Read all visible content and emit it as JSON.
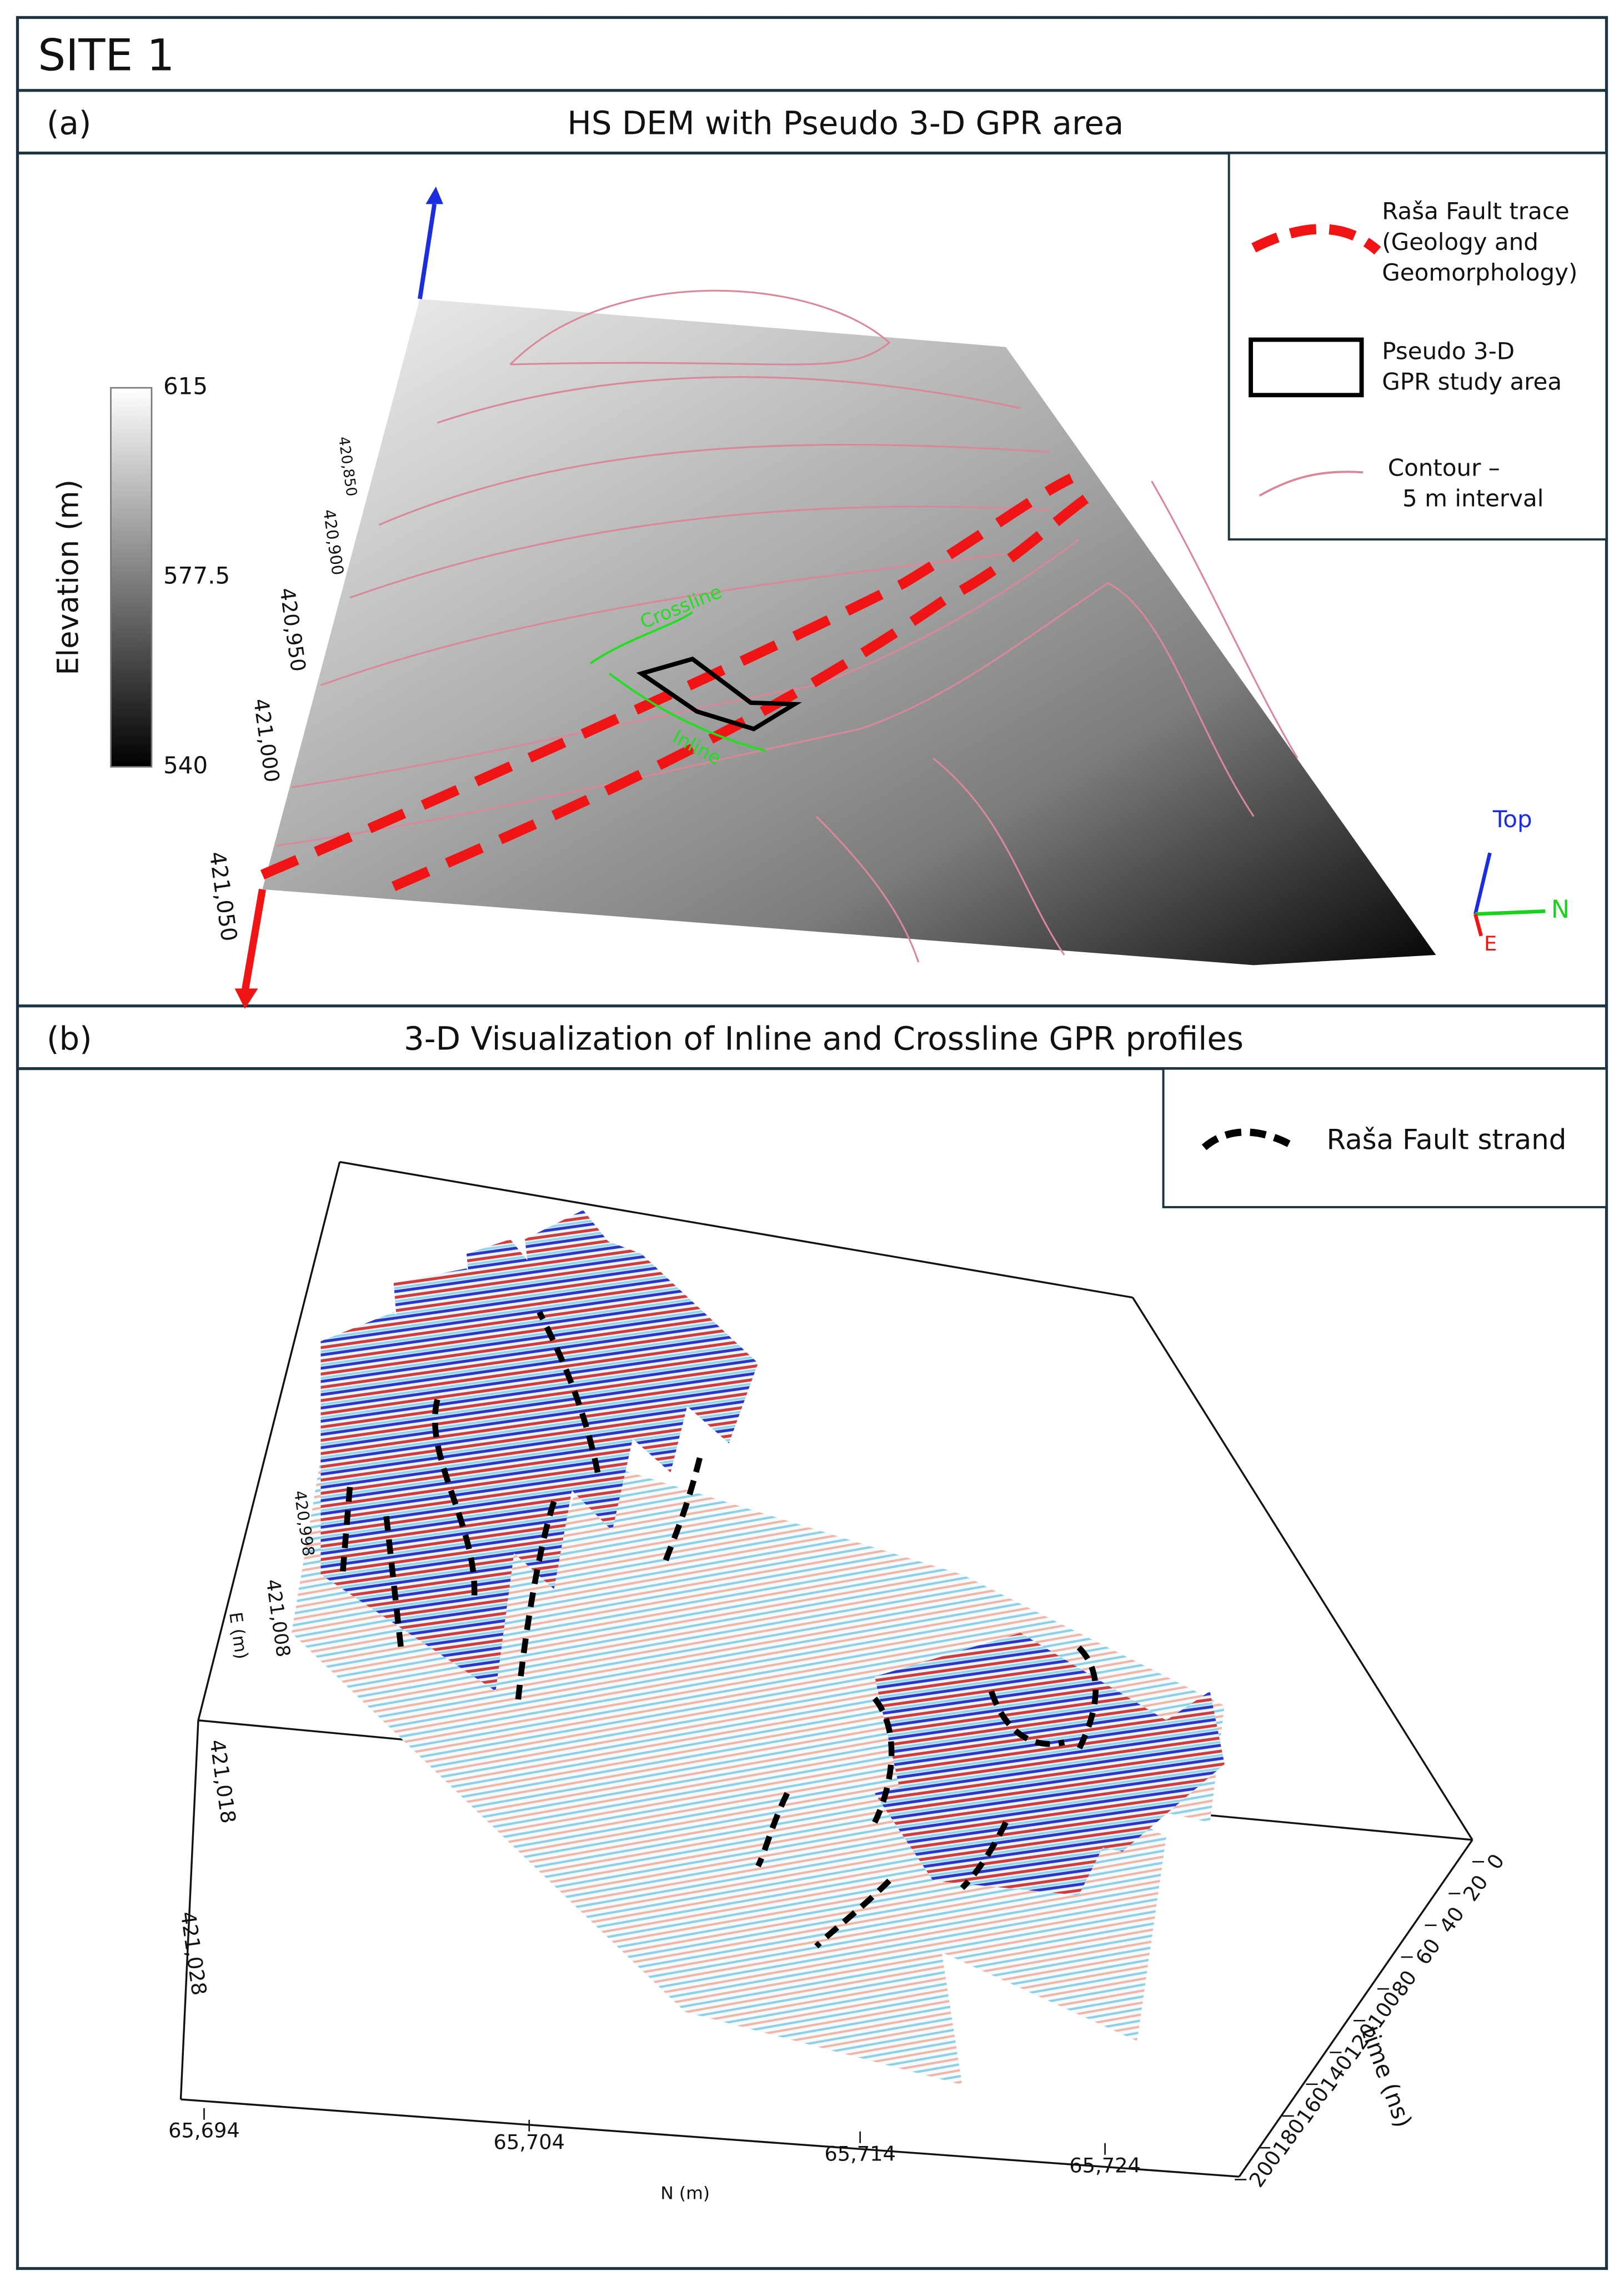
{
  "title": "SITE 1",
  "panel_a": {
    "label": "(a)",
    "title": "HS DEM with Pseudo 3-D GPR area",
    "colorbar": {
      "title": "Elevation (m)",
      "ticks": [
        615,
        577.5,
        540
      ]
    },
    "e_ticks": [
      "420,850",
      "420,900",
      "420,950",
      "421,000",
      "421,050"
    ],
    "crossline": "Crossline",
    "inline": "Inline",
    "legend": [
      {
        "lines": [
          "Raša Fault trace",
          "(Geology and",
          "Geomorphology)"
        ]
      },
      {
        "lines": [
          "Pseudo 3-D",
          "GPR study area"
        ]
      },
      {
        "lines": [
          "Contour –",
          "5 m interval"
        ]
      }
    ],
    "triad": {
      "top": "Top",
      "n": "N",
      "e": "E"
    }
  },
  "panel_b": {
    "label": "(b)",
    "title": "3-D Visualization of Inline and Crossline GPR profiles",
    "legend": "Raša Fault strand",
    "e_ticks": [
      "420,998",
      "421,008",
      "421,018",
      "421,028"
    ],
    "e_label": "E (m)",
    "n_ticks": [
      "65,694",
      "65,704",
      "65,714",
      "65,724"
    ],
    "n_label": "N (m)",
    "time_ticks": [
      0,
      20,
      40,
      60,
      80,
      100,
      120,
      140,
      160,
      180,
      200
    ],
    "time_label": "time (ns)"
  }
}
